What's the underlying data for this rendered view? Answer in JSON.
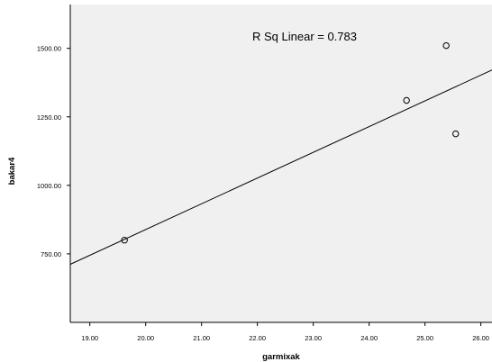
{
  "chart_data": {
    "type": "scatter",
    "xlabel": "garmixak",
    "ylabel": "bakar4",
    "xlim": [
      18.65,
      26.2
    ],
    "ylim": [
      500,
      1660
    ],
    "x_ticks": [
      "19.00",
      "20.00",
      "21.00",
      "22.00",
      "23.00",
      "24.00",
      "25.00",
      "26.00"
    ],
    "y_ticks": [
      "750.00",
      "1000.00",
      "1250.00",
      "1500.00"
    ],
    "points": [
      {
        "x": 19.62,
        "y": 800
      },
      {
        "x": 24.67,
        "y": 1310
      },
      {
        "x": 25.38,
        "y": 1510
      },
      {
        "x": 25.55,
        "y": 1188
      }
    ],
    "fit_line": {
      "x": [
        18.65,
        26.2
      ],
      "y": [
        712,
        1421
      ]
    },
    "annotation": "R Sq Linear = 0.783",
    "background_color": "#f0f0f0",
    "grid": false
  }
}
